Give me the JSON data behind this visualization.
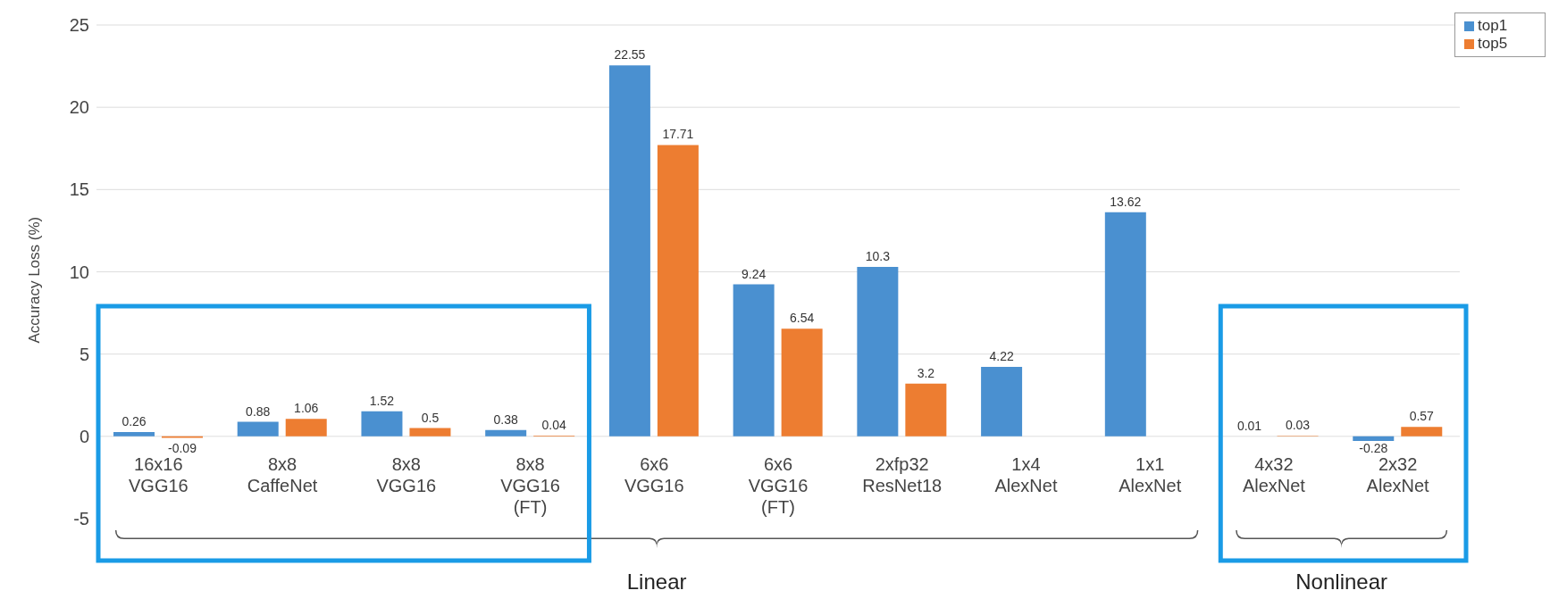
{
  "chart_data": {
    "type": "bar",
    "ylabel": "Accuracy Loss (%)",
    "categories": [
      "16x16\nVGG16",
      "8x8\nCaffeNet",
      "8x8\nVGG16",
      "8x8\nVGG16\n(FT)",
      "6x6\nVGG16",
      "6x6\nVGG16\n(FT)",
      "2xfp32\nResNet18",
      "1x4\nAlexNet",
      "1x1\nAlexNet",
      "4x32\nAlexNet",
      "2x32\nAlexNet"
    ],
    "series": [
      {
        "name": "top1",
        "color": "#4a90d0",
        "values": [
          0.26,
          0.88,
          1.52,
          0.38,
          22.55,
          9.24,
          10.3,
          4.22,
          13.62,
          0.01,
          -0.28
        ]
      },
      {
        "name": "top5",
        "color": "#ed7d31",
        "values": [
          -0.09,
          1.06,
          0.5,
          0.04,
          17.71,
          6.54,
          3.2,
          null,
          null,
          0.03,
          0.57
        ]
      }
    ],
    "ylim": [
      -5,
      25
    ],
    "yticks": [
      -5,
      0,
      5,
      10,
      15,
      20,
      25
    ],
    "grid": "y",
    "legend": "top right",
    "data_labels": true,
    "annotations": [
      "Linear",
      "Nonlinear"
    ]
  }
}
